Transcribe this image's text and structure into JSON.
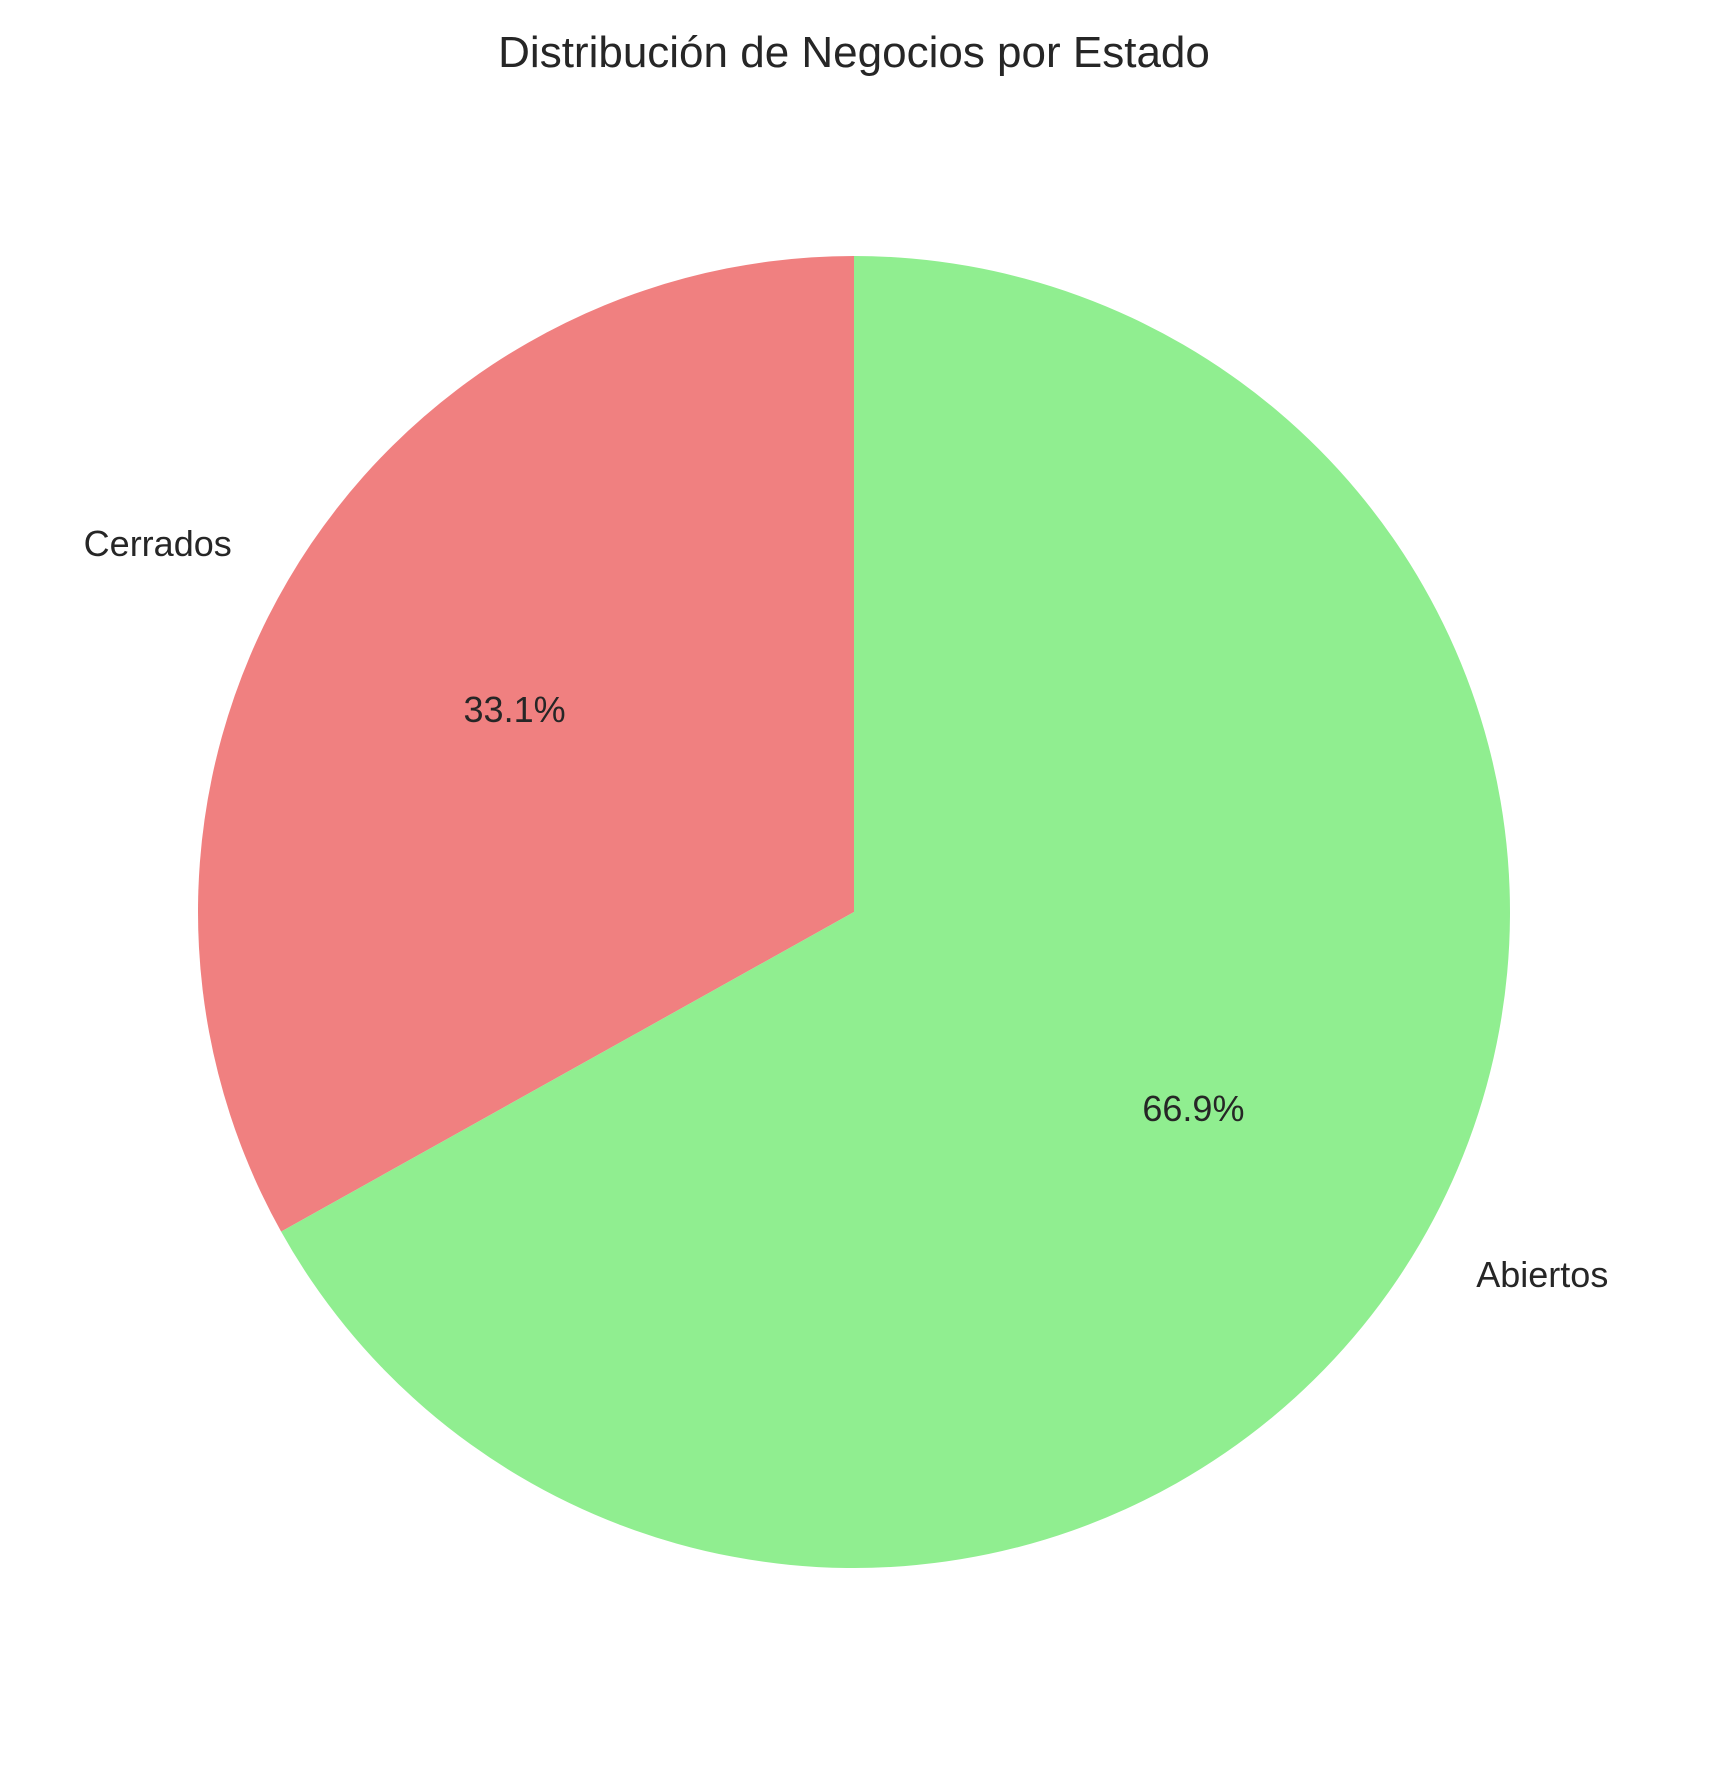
{
  "chart_data": {
    "type": "pie",
    "title": "Distribución de Negocios por Estado",
    "start_angle": 90,
    "direction": "counterclockwise",
    "slices": [
      {
        "label": "Cerrados",
        "value": 33.1,
        "pct_label": "33.1%",
        "color": "#F08080"
      },
      {
        "label": "Abiertos",
        "value": 66.9,
        "pct_label": "66.9%",
        "color": "#90EE90"
      }
    ]
  }
}
